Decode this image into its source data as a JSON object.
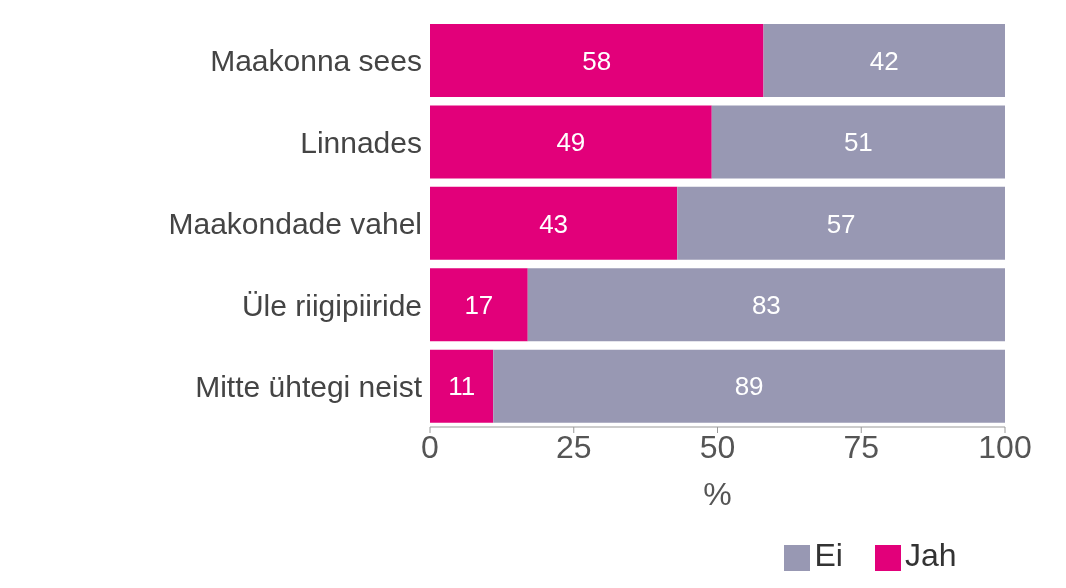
{
  "chart_data": {
    "type": "bar",
    "orientation": "horizontal",
    "stacked": true,
    "categories": [
      "Maakonna sees",
      "Linnades",
      "Maakondade vahel",
      "Üle riigipiiride",
      "Mitte ühtegi neist"
    ],
    "series": [
      {
        "name": "Jah",
        "color": "#e2007a",
        "values": [
          58,
          49,
          43,
          17,
          11
        ]
      },
      {
        "name": "Ei",
        "color": "#9898b3",
        "values": [
          42,
          51,
          57,
          83,
          89
        ]
      }
    ],
    "xlabel": "%",
    "xlim": [
      0,
      100
    ],
    "xticks": [
      0,
      25,
      50,
      75,
      100
    ],
    "data_labels": true,
    "legend": "bottom",
    "grid": false
  }
}
